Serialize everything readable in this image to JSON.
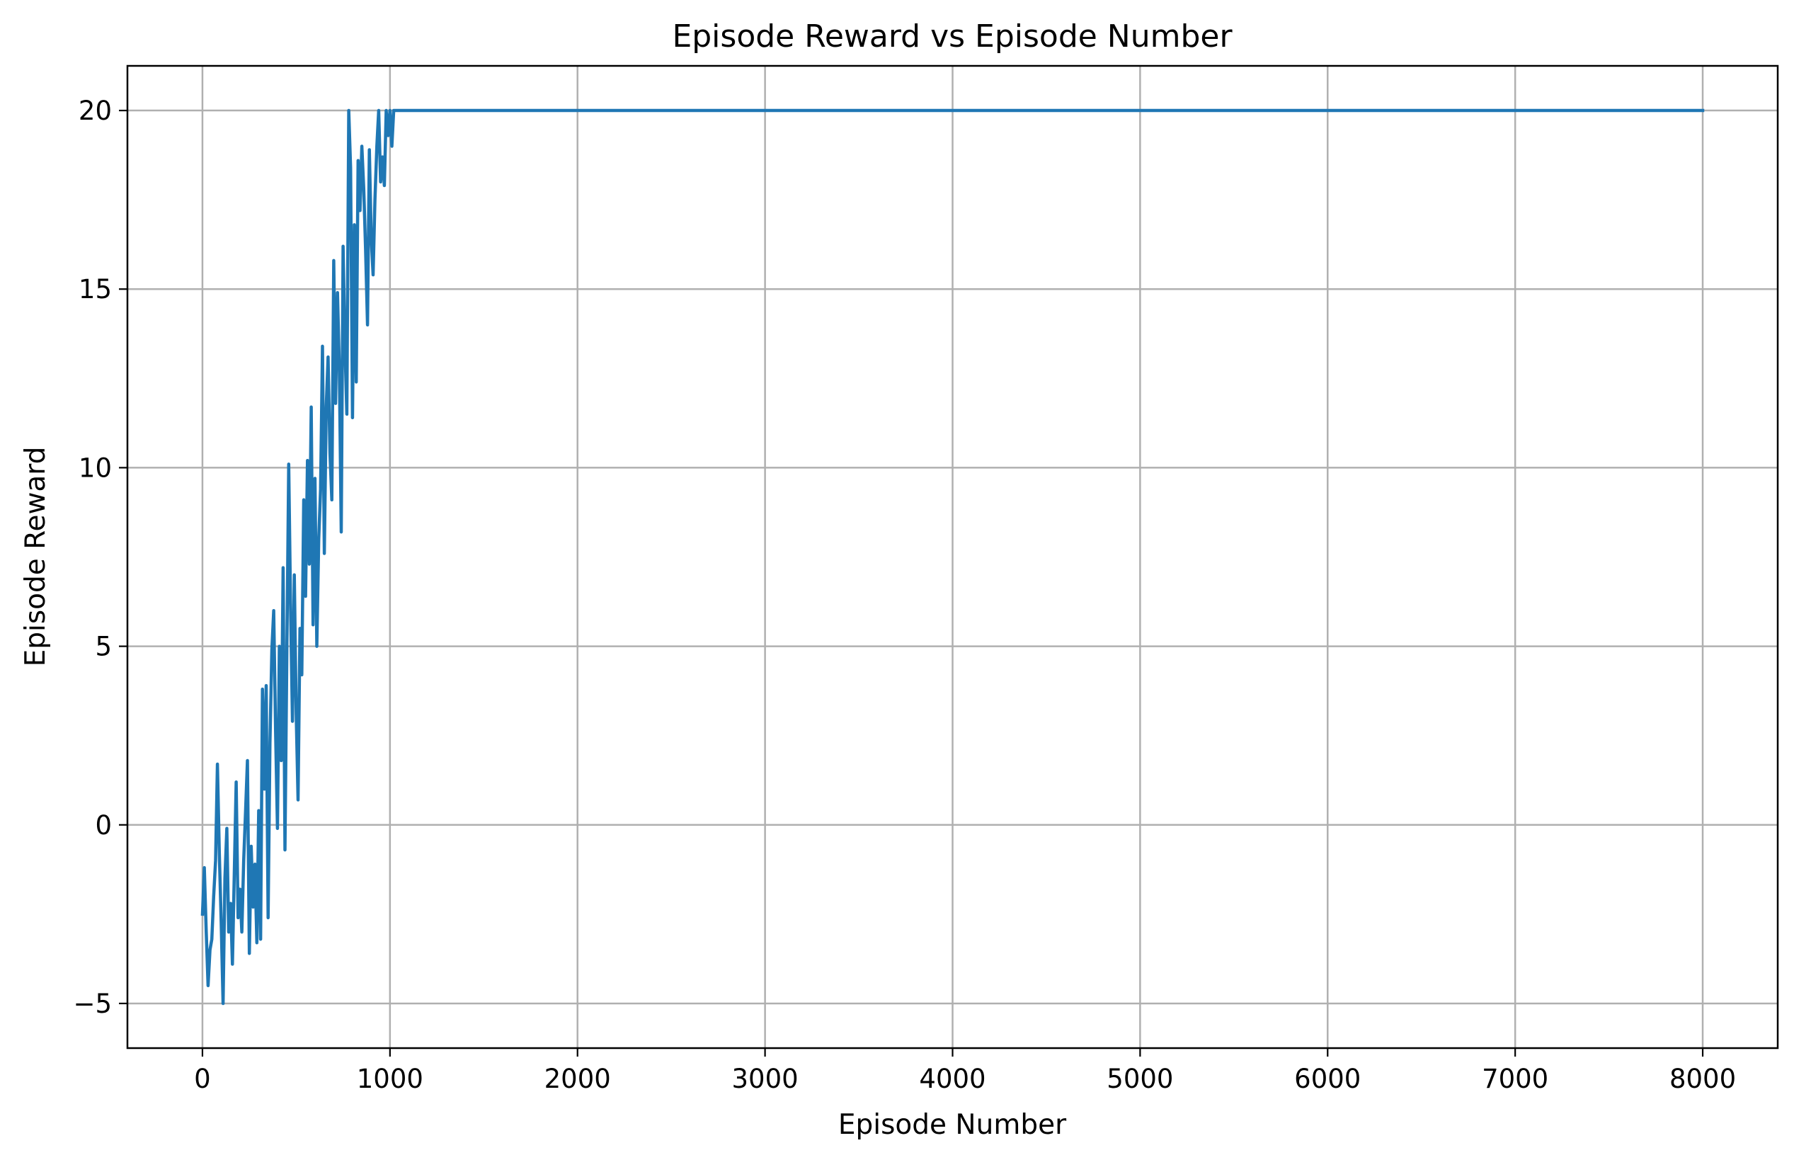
{
  "chart_data": {
    "type": "line",
    "title": "Episode Reward vs Episode Number",
    "xlabel": "Episode Number",
    "ylabel": "Episode Reward",
    "xlim": [
      -400,
      8400
    ],
    "ylim": [
      -6.25,
      21.25
    ],
    "xticks": [
      0,
      1000,
      2000,
      3000,
      4000,
      5000,
      6000,
      7000,
      8000
    ],
    "yticks": [
      -5,
      0,
      5,
      10,
      15,
      20
    ],
    "xtick_labels": [
      "0",
      "1000",
      "2000",
      "3000",
      "4000",
      "5000",
      "6000",
      "7000",
      "8000"
    ],
    "ytick_labels": [
      "−5",
      "0",
      "5",
      "10",
      "15",
      "20"
    ],
    "grid": true,
    "color": "#1f77b4",
    "series": [
      {
        "x": [
          0,
          10,
          20,
          30,
          40,
          50,
          60,
          70,
          80,
          90,
          100,
          110,
          120,
          130,
          140,
          150,
          160,
          170,
          180,
          190,
          200,
          210,
          220,
          230,
          240,
          250,
          260,
          270,
          280,
          290,
          300,
          310,
          320,
          330,
          340,
          350,
          360,
          370,
          380,
          390,
          400,
          410,
          420,
          430,
          440,
          450,
          460,
          470,
          480,
          490,
          500,
          510,
          520,
          530,
          540,
          550,
          560,
          570,
          580,
          590,
          600,
          610,
          620,
          630,
          640,
          650,
          660,
          670,
          680,
          690,
          700,
          710,
          720,
          730,
          740,
          750,
          760,
          770,
          780,
          790,
          800,
          810,
          820,
          830,
          840,
          850,
          860,
          870,
          880,
          890,
          900,
          910,
          920,
          930,
          940,
          950,
          960,
          970,
          980,
          990,
          1000,
          1010,
          1020,
          1030,
          1040,
          1050,
          1060,
          1070,
          1080,
          1090,
          1100,
          1110,
          1120,
          1130,
          1140,
          1150,
          8000
        ],
        "y": [
          -2.5,
          -1.2,
          -3.0,
          -4.5,
          -3.5,
          -3.2,
          -2.0,
          -1.0,
          1.7,
          -0.8,
          -2.7,
          -5.0,
          -1.5,
          -0.1,
          -3.0,
          -2.2,
          -3.9,
          -1.3,
          1.2,
          -2.6,
          -1.8,
          -3.0,
          -1.0,
          0.4,
          1.8,
          -3.6,
          -0.6,
          -2.3,
          -1.1,
          -3.3,
          0.4,
          -3.2,
          3.8,
          1.0,
          3.9,
          -2.6,
          2.3,
          4.9,
          6.0,
          2.6,
          -0.1,
          5.0,
          1.8,
          7.2,
          -0.7,
          4.9,
          10.1,
          6.0,
          2.9,
          7.0,
          3.1,
          0.7,
          5.5,
          4.2,
          9.1,
          6.4,
          10.2,
          7.3,
          11.7,
          5.6,
          9.7,
          5.0,
          8.0,
          9.4,
          13.4,
          7.6,
          11.7,
          13.1,
          10.4,
          9.1,
          15.8,
          11.8,
          14.9,
          12.8,
          8.2,
          16.2,
          13.4,
          11.5,
          20.0,
          18.4,
          11.4,
          16.8,
          12.4,
          18.6,
          17.2,
          19.0,
          17.8,
          16.1,
          14.0,
          18.9,
          16.4,
          15.4,
          17.5,
          19.0,
          20.0,
          18.0,
          18.7,
          17.9,
          20.0,
          19.3,
          20.0,
          19.0,
          20.0,
          20.0,
          20.0,
          20.0,
          20.0,
          20.0,
          20.0,
          20.0,
          20.0,
          20.0,
          20.0,
          20.0,
          20.0,
          20.0,
          20.0
        ]
      }
    ]
  }
}
